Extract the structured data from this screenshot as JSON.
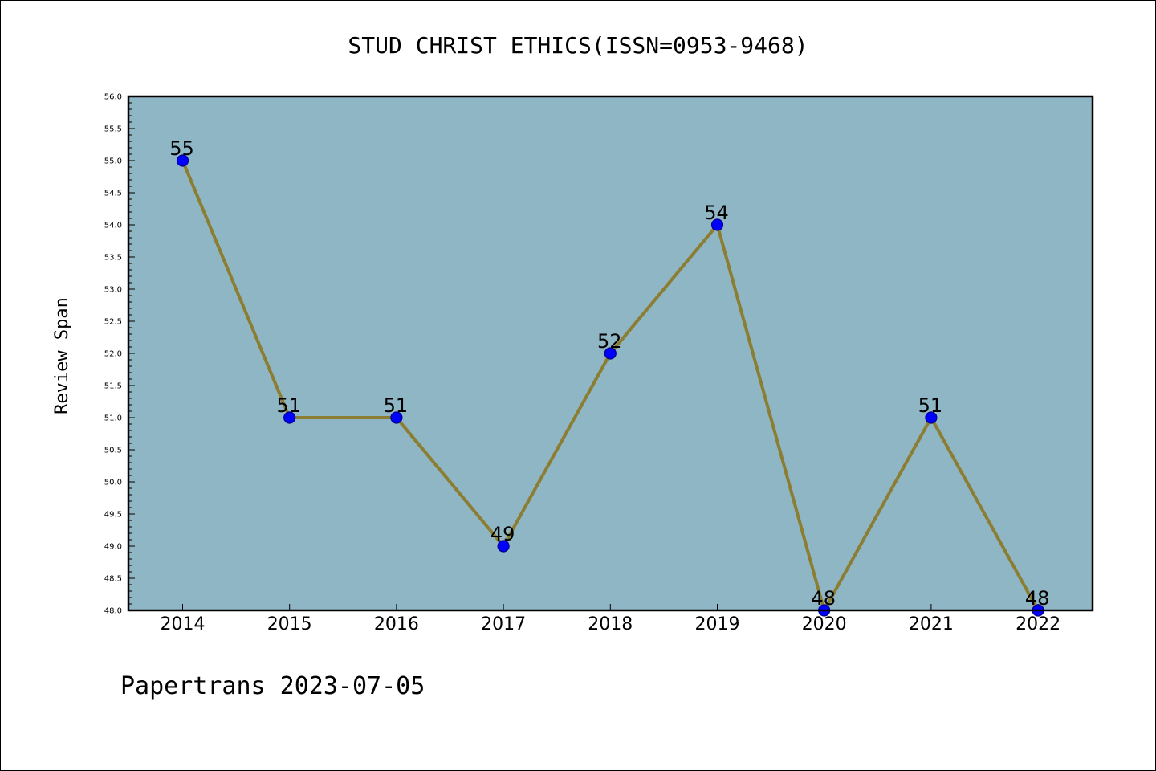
{
  "chart_data": {
    "type": "line",
    "title": "STUD CHRIST ETHICS(ISSN=0953-9468)",
    "xlabel": "",
    "ylabel": "Review Span",
    "categories": [
      "2014",
      "2015",
      "2016",
      "2017",
      "2018",
      "2019",
      "2020",
      "2021",
      "2022"
    ],
    "series": [
      {
        "values": [
          55,
          51,
          51,
          49,
          52,
          54,
          48,
          51,
          48
        ]
      }
    ],
    "data_labels": [
      "55",
      "51",
      "51",
      "49",
      "52",
      "54",
      "48",
      "51",
      "48"
    ],
    "ylim": [
      48.0,
      56.0
    ],
    "yticks": [
      "48.0",
      "48.5",
      "49.0",
      "49.5",
      "50.0",
      "50.5",
      "51.0",
      "51.5",
      "52.0",
      "52.5",
      "53.0",
      "53.5",
      "54.0",
      "54.5",
      "55.0",
      "55.5",
      "56.0"
    ],
    "grid": false,
    "legend": "none",
    "colors": {
      "plot_background": "#8fb6c4",
      "line": "#8b7d32",
      "marker": "#0000ff",
      "marker_edge": "#00008b",
      "axes": "#000000"
    }
  },
  "footer": {
    "text": "Papertrans 2023-07-05"
  }
}
